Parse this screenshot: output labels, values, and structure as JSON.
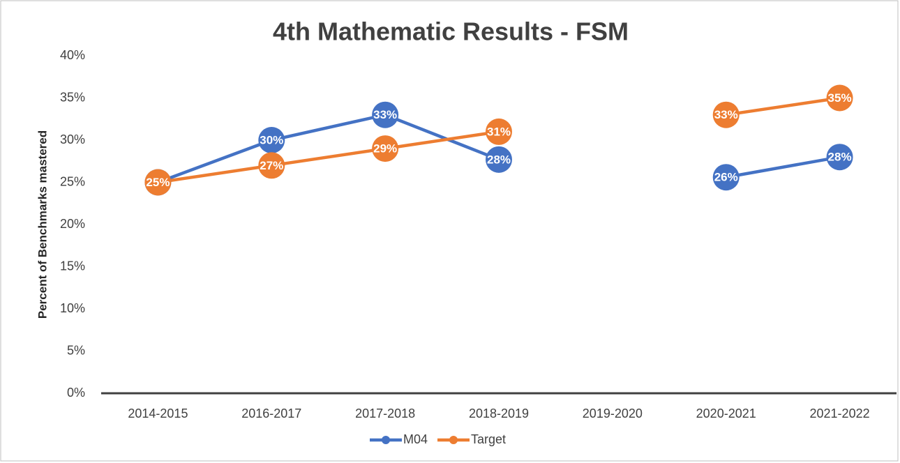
{
  "chart_data": {
    "type": "line",
    "title": "4th Mathematic Results - FSM",
    "y_label": "Percent of Benchmarks mastered",
    "categories": [
      "2014-2015",
      "2016-2017",
      "2017-2018",
      "2018-2019",
      "2019-2020",
      "2020-2021",
      "2021-2022"
    ],
    "series": [
      {
        "name": "M04",
        "color": "#4472c4",
        "values": [
          25,
          30,
          33,
          27.7,
          null,
          25.6,
          28
        ],
        "value_labels": [
          "25%",
          "30%",
          "33%",
          "28%",
          null,
          "26%",
          "28%"
        ]
      },
      {
        "name": "Target",
        "color": "#ed7d31",
        "values": [
          25,
          27,
          29,
          31,
          null,
          33,
          35
        ],
        "value_labels": [
          "25%",
          "27%",
          "29%",
          "31%",
          null,
          "33%",
          "35%"
        ]
      }
    ],
    "ylim": [
      0,
      40
    ],
    "yticks": [
      {
        "value": 0,
        "label": "0%"
      },
      {
        "value": 5,
        "label": "5%"
      },
      {
        "value": 10,
        "label": "10%"
      },
      {
        "value": 15,
        "label": "15%"
      },
      {
        "value": 20,
        "label": "20%"
      },
      {
        "value": 25,
        "label": "25%"
      },
      {
        "value": 30,
        "label": "30%"
      },
      {
        "value": 35,
        "label": "35%"
      },
      {
        "value": 40,
        "label": "40%"
      }
    ],
    "grid": false,
    "legend": "bottom"
  }
}
